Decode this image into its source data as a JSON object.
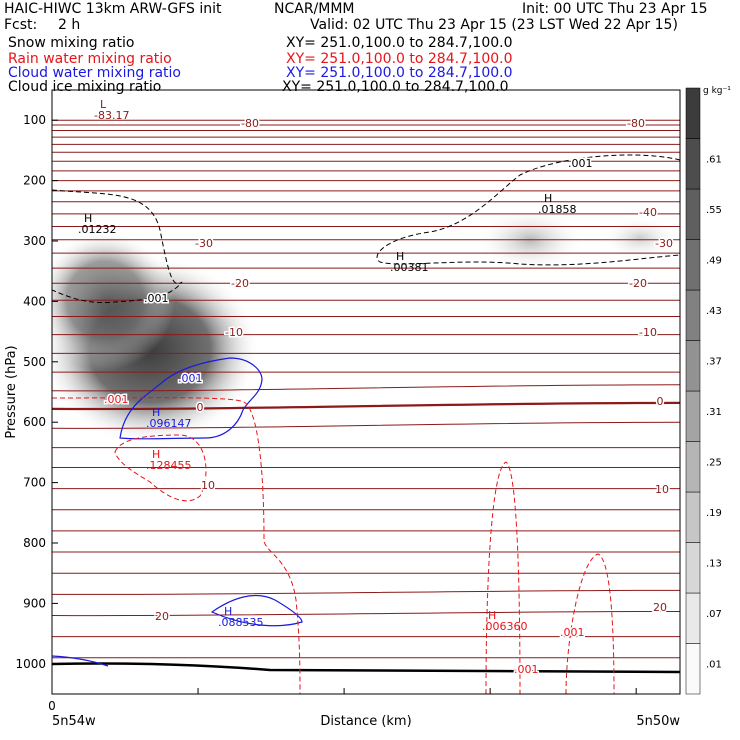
{
  "header": {
    "model": "HAIC-HIWC 13km ARW-GFS init",
    "org": "NCAR/MMM",
    "init": "Init: 00 UTC Thu 23 Apr 15",
    "fcst_label": "Fcst:",
    "fcst_value": "2 h",
    "valid": "Valid: 02 UTC Thu 23 Apr 15 (23 LST Wed 22 Apr 15)",
    "fields": [
      {
        "name": "Snow mixing ratio",
        "xy": "XY= 251.0,100.0 to 284.7,100.0",
        "color": "#000000"
      },
      {
        "name": "Rain water mixing ratio",
        "xy": "XY= 251.0,100.0 to 284.7,100.0",
        "color": "#e8141a"
      },
      {
        "name": "Cloud water mixing ratio",
        "xy": "XY= 251.0,100.0 to 284.7,100.0",
        "color": "#1a1ae0"
      },
      {
        "name": "Cloud ice mixing ratio",
        "xy": "XY= 251.0,100.0 to 284.7,100.0",
        "color": "#000000"
      }
    ]
  },
  "chart_data": {
    "type": "contour-cross-section",
    "ylabel": "Pressure (hPa)",
    "xlabel": "Distance (km)",
    "y_ticks": [
      100,
      200,
      300,
      400,
      500,
      600,
      700,
      800,
      900,
      1000
    ],
    "y_range": [
      50,
      1050
    ],
    "x_tick_label": "0",
    "x_left_label": "5n54w",
    "x_right_label": "5n50w",
    "colorbar": {
      "unit": "g kg⁻¹",
      "levels": [
        ".01",
        ".07",
        ".13",
        ".19",
        ".25",
        ".31",
        ".37",
        ".43",
        ".49",
        ".55",
        ".61"
      ]
    },
    "temperature_isotherms": [
      {
        "label": "-80",
        "p": 120
      },
      {
        "label": "-40",
        "p": 260
      },
      {
        "label": "-30",
        "p": 293
      },
      {
        "label": "-20",
        "p": 376
      },
      {
        "label": "-10",
        "p": 486
      },
      {
        "label": "0",
        "p": 578
      },
      {
        "label": "10",
        "p": 735
      },
      {
        "label": "20",
        "p": 920
      }
    ],
    "extrema": [
      {
        "kind": "L",
        "value": "-83.17",
        "color": "#8b1a1a"
      },
      {
        "kind": "H",
        "value": ".01232",
        "color": "#000000"
      },
      {
        "kind": "H",
        "value": ".01858",
        "color": "#000000"
      },
      {
        "kind": "H",
        "value": ".00381",
        "color": "#000000"
      },
      {
        "kind": "H",
        "value": ".096147",
        "color": "#1a1ae0"
      },
      {
        "kind": "H",
        "value": ".128455",
        "color": "#e8141a"
      },
      {
        "kind": "H",
        "value": ".088535",
        "color": "#1a1ae0"
      },
      {
        "kind": "H",
        "value": ".006360",
        "color": "#e8141a"
      }
    ],
    "contour_labels": [
      {
        "text": ".001",
        "color": "#000000"
      },
      {
        "text": ".001",
        "color": "#000000"
      },
      {
        "text": ".001",
        "color": "#1a1ae0"
      },
      {
        "text": ".001",
        "color": "#e8141a"
      },
      {
        "text": ".001",
        "color": "#e8141a"
      },
      {
        "text": ".001",
        "color": "#e8141a"
      }
    ]
  }
}
